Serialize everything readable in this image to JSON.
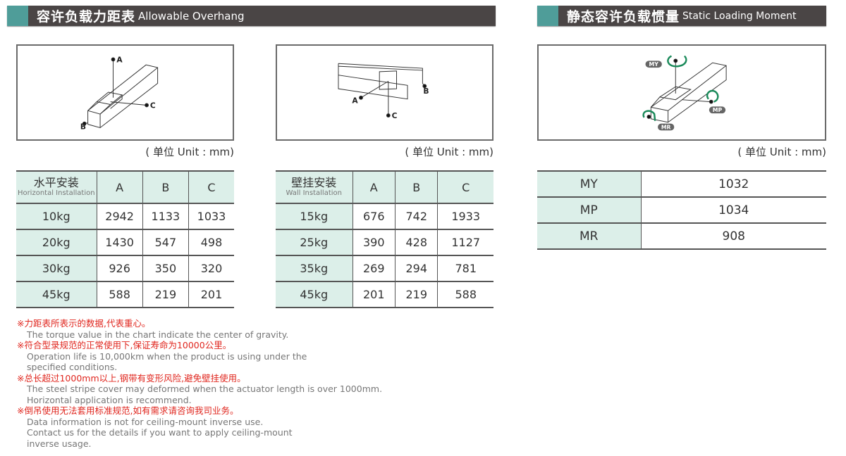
{
  "overhang": {
    "title_cn": "容许负载力距表",
    "title_en": "Allowable Overhang",
    "unit": "( 单位 Unit : mm)",
    "diagram_labels": {
      "a": "A",
      "b": "B",
      "c": "C"
    },
    "horizontal": {
      "header_cn": "水平安装",
      "header_en": "Horizontal Installation",
      "cols": [
        "A",
        "B",
        "C"
      ],
      "rows": [
        {
          "load": "10kg",
          "v": [
            "2942",
            "1133",
            "1033"
          ]
        },
        {
          "load": "20kg",
          "v": [
            "1430",
            "547",
            "498"
          ]
        },
        {
          "load": "30kg",
          "v": [
            "926",
            "350",
            "320"
          ]
        },
        {
          "load": "45kg",
          "v": [
            "588",
            "219",
            "201"
          ]
        }
      ]
    },
    "wall": {
      "header_cn": "壁挂安装",
      "header_en": "Wall Installation",
      "cols": [
        "A",
        "B",
        "C"
      ],
      "rows": [
        {
          "load": "15kg",
          "v": [
            "676",
            "742",
            "1933"
          ]
        },
        {
          "load": "25kg",
          "v": [
            "390",
            "428",
            "1127"
          ]
        },
        {
          "load": "35kg",
          "v": [
            "269",
            "294",
            "781"
          ]
        },
        {
          "load": "45kg",
          "v": [
            "201",
            "219",
            "588"
          ]
        }
      ]
    }
  },
  "moment": {
    "title_cn": "静态容许负载惯量",
    "title_en": "Static Loading Moment",
    "unit": "( 单位 Unit : mm)",
    "diagram_labels": {
      "my": "MY",
      "mp": "MP",
      "mr": "MR"
    },
    "rows": [
      {
        "name": "MY",
        "value": "1032"
      },
      {
        "name": "MP",
        "value": "1034"
      },
      {
        "name": "MR",
        "value": "908"
      }
    ]
  },
  "notes": [
    {
      "cn": "※力距表所表示的数据,代表重心。",
      "en": [
        "The torque value in the chart indicate the center of gravity."
      ]
    },
    {
      "cn": "※符合型录规范的正常使用下,保证寿命为10000公里。",
      "en": [
        "Operation life is 10,000km when the product is using under the",
        "specified conditions."
      ]
    },
    {
      "cn": "※总长超过1000mm以上,钢带有变形风险,避免壁挂使用。",
      "en": [
        "The steel stripe cover may deformed when the actuator length is over 1000mm.",
        "Horizontal application is recommend."
      ]
    },
    {
      "cn": "※倒吊使用无法套用标准规范,如有需求请咨询我司业务。",
      "en": [
        "Data information is not for ceiling-mount inverse use.",
        "Contact us for the details if you want to apply ceiling-mount",
        "inverse usage."
      ]
    }
  ],
  "colors": {
    "header_bg": "#4a4545",
    "accent_teal": "#4f9d99",
    "table_mint": "#dcefe9",
    "note_red": "#e0261e",
    "arrow_green": "#1a8a5a"
  }
}
